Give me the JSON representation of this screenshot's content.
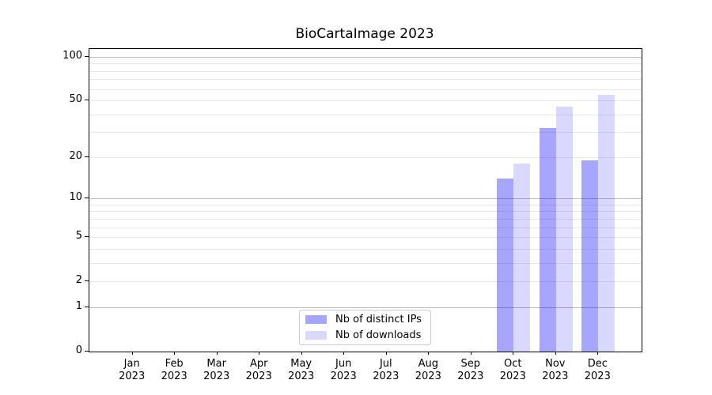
{
  "title": "BioCartaImage 2023",
  "colors": {
    "bar_distinct_ips": "rgba(0,0,255,0.35)",
    "bar_downloads": "rgba(0,0,255,0.15)",
    "major_grid": "#bcbcbc",
    "minor_grid": "#e9e9e9",
    "axis": "#000000",
    "legend_border": "#cccccc"
  },
  "chart_data": {
    "type": "bar",
    "title": "BioCartaImage 2023",
    "x_year": "2023",
    "categories": [
      "Jan",
      "Feb",
      "Mar",
      "Apr",
      "May",
      "Jun",
      "Jul",
      "Aug",
      "Sep",
      "Oct",
      "Nov",
      "Dec"
    ],
    "series": [
      {
        "name": "Nb of distinct IPs",
        "values": [
          0,
          0,
          0,
          0,
          0,
          0,
          0,
          0,
          0,
          14,
          32,
          19
        ]
      },
      {
        "name": "Nb of downloads",
        "values": [
          0,
          0,
          0,
          0,
          0,
          0,
          0,
          0,
          0,
          18,
          45,
          55
        ]
      }
    ],
    "yscale": "log1p",
    "ylim": [
      0,
      113
    ],
    "ytick_labels": [
      0,
      1,
      2,
      5,
      10,
      20,
      50,
      100
    ],
    "major_gridlines": [
      1,
      10,
      100
    ],
    "minor_gridlines": [
      2,
      3,
      4,
      5,
      6,
      7,
      8,
      9,
      20,
      30,
      40,
      50,
      60,
      70,
      80,
      90
    ],
    "grid": true,
    "legend_position": "lower center"
  }
}
